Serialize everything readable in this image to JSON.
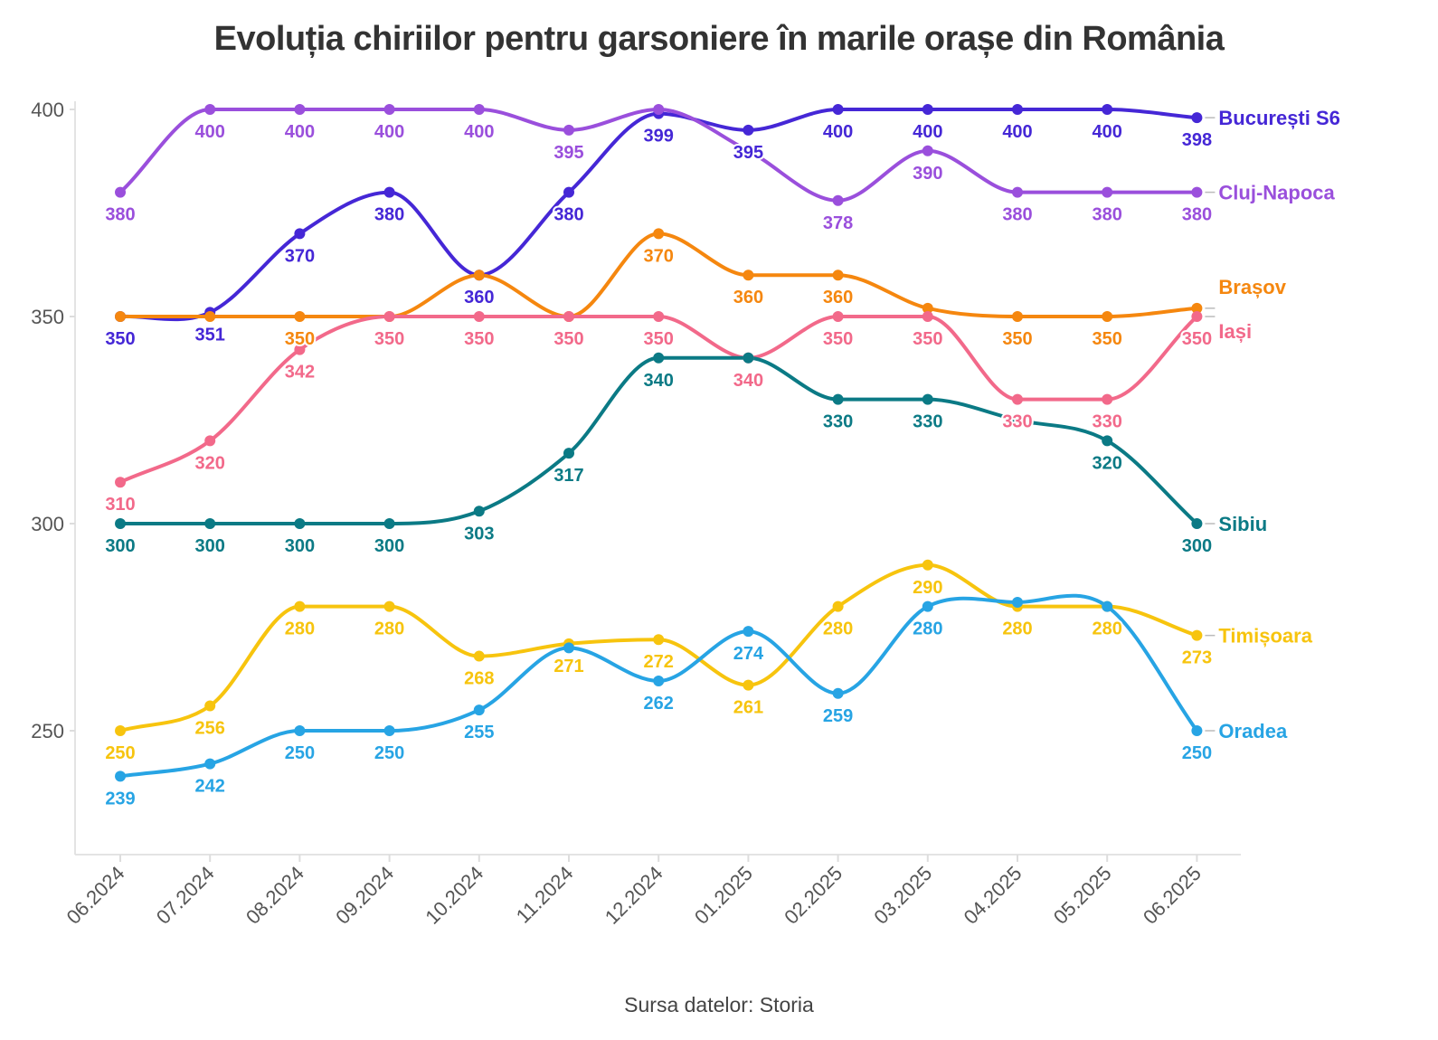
{
  "chart_data": {
    "type": "line",
    "title": "Evoluția chiriilor pentru garsoniere în marile orașe din România",
    "source": "Sursa datelor: Storia",
    "xlabel": "",
    "ylabel": "",
    "categories": [
      "06.2024",
      "07.2024",
      "08.2024",
      "09.2024",
      "10.2024",
      "11.2024",
      "12.2024",
      "01.2025",
      "02.2025",
      "03.2025",
      "04.2025",
      "05.2025",
      "06.2025"
    ],
    "ylim": [
      220,
      410
    ],
    "yticks": [
      250,
      300,
      350,
      400
    ],
    "grid": false,
    "legend": "direct labels at right end of each line",
    "series": [
      {
        "name": "București S6",
        "color": "#4527d6",
        "values": [
          350,
          351,
          370,
          380,
          360,
          380,
          399,
          395,
          400,
          400,
          400,
          400,
          398
        ],
        "labels": [
          "350",
          "351",
          "370",
          "380",
          "360",
          "380",
          "399",
          "395",
          "400",
          "400",
          "400",
          "400",
          "398"
        ]
      },
      {
        "name": "Cluj-Napoca",
        "color": "#9a4fdc",
        "values": [
          380,
          400,
          400,
          400,
          400,
          395,
          400,
          390,
          378,
          390,
          380,
          380,
          380
        ],
        "labels": [
          "380",
          "400",
          "400",
          "400",
          "400",
          "395",
          "",
          "",
          "378",
          "390",
          "380",
          "380",
          "380"
        ]
      },
      {
        "name": "Brașov",
        "color": "#f5870f",
        "values": [
          350,
          350,
          350,
          350,
          360,
          350,
          370,
          360,
          360,
          352,
          350,
          350,
          352
        ],
        "labels": [
          "",
          "",
          "350",
          "",
          "",
          "",
          "370",
          "360",
          "360",
          "",
          "350",
          "350",
          ""
        ]
      },
      {
        "name": "Iași",
        "color": "#f2698a",
        "values": [
          310,
          320,
          342,
          350,
          350,
          350,
          350,
          340,
          350,
          350,
          330,
          330,
          350
        ],
        "labels": [
          "310",
          "320",
          "342",
          "350",
          "350",
          "350",
          "350",
          "340",
          "350",
          "350",
          "330",
          "330",
          "350"
        ]
      },
      {
        "name": "Sibiu",
        "color": "#0b7a85",
        "values": [
          300,
          300,
          300,
          300,
          303,
          317,
          340,
          340,
          330,
          330,
          325,
          320,
          300
        ],
        "labels": [
          "300",
          "300",
          "300",
          "300",
          "303",
          "317",
          "340",
          "",
          "330",
          "330",
          "",
          "320",
          "300"
        ]
      },
      {
        "name": "Timișoara",
        "color": "#f7c40e",
        "values": [
          250,
          256,
          280,
          280,
          268,
          271,
          272,
          261,
          280,
          290,
          280,
          280,
          273
        ],
        "labels": [
          "250",
          "256",
          "280",
          "280",
          "268",
          "271",
          "272",
          "261",
          "280",
          "290",
          "280",
          "280",
          "273"
        ]
      },
      {
        "name": "Oradea",
        "color": "#27a4e4",
        "values": [
          239,
          242,
          250,
          250,
          255,
          270,
          262,
          274,
          259,
          280,
          281,
          280,
          250
        ],
        "labels": [
          "239",
          "242",
          "250",
          "250",
          "255",
          "",
          "262",
          "274",
          "259",
          "280",
          "",
          "",
          "250"
        ]
      }
    ]
  }
}
